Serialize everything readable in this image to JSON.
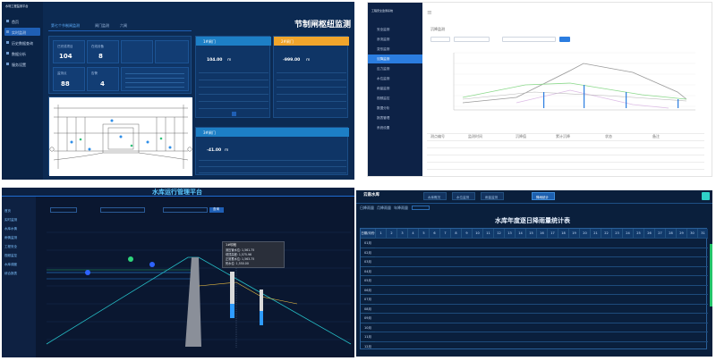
{
  "panel1": {
    "title": "节制闸枢纽监测",
    "nav": [
      "首页",
      "实时监测",
      "历史数据查询",
      "数据分析",
      "服务设置"
    ],
    "tabs": [
      "第七个节制闸监测",
      "闸门监测",
      "六闸"
    ],
    "tiles": [
      {
        "value": "104",
        "label": "已完成项目"
      },
      {
        "value": "8",
        "label": "在线设备"
      },
      {
        "value": "88",
        "label": "监测点"
      },
      {
        "value": "4",
        "label": "告警"
      }
    ],
    "gate1": {
      "header": "1#闸门",
      "value": "104.00",
      "unit": "m"
    },
    "gate2": {
      "header": "2#闸门",
      "value": "-999.00",
      "unit": "m"
    },
    "gate3": {
      "header": "3#闸门",
      "value": "-41.00",
      "unit": "m"
    },
    "colors": {
      "accent": "#1f5fb5",
      "gate1": "#1d7fc6",
      "gate2": "#f0a52c",
      "gate3": "#1d7fc6"
    }
  },
  "panel2": {
    "title": "沉降监测",
    "nav": [
      "安全监测",
      "渗流监测",
      "变形监测",
      "沉降监测",
      "应力监测",
      "水位监测",
      "雨量监测",
      "视频监控",
      "数据分析",
      "报表管理",
      "系统设置"
    ],
    "active_index": 3,
    "legend": [
      "设计线",
      "监测线"
    ],
    "table_headers": [
      "测点编号",
      "监测时间",
      "沉降值",
      "累计沉降",
      "状态",
      "备注"
    ]
  },
  "panel3": {
    "title": "水库运行管理平台",
    "nav": [
      "首页",
      "实时监测",
      "水库水情",
      "雨情监测",
      "工程安全",
      "视频监控",
      "水库调度",
      "综合报表"
    ],
    "query_button": "查询",
    "tooltip": {
      "title": "1#坝段",
      "items": [
        "测压管水位: 1,561.75",
        "坝顶高程: 1,575.96",
        "正常蓄水位: 1,563.75",
        "死水位: 1,550.00"
      ]
    },
    "colors": {
      "water": "#2e9bff",
      "dam": "#8a8f99",
      "profile": "#26c0c8",
      "phreatic": "#f4c542"
    }
  },
  "panel4": {
    "nav_title": "云南水库",
    "tabs": [
      "水库概况",
      "水位监测",
      "雨量监测",
      "降雨统计"
    ],
    "active_tab": 3,
    "subtabs": [
      "日降雨量",
      "月降雨量",
      "年降雨量"
    ],
    "table_title": "水库年度逐日降雨量统计表",
    "col_header": "日期/月份",
    "days": [
      "1",
      "2",
      "3",
      "4",
      "5",
      "6",
      "7",
      "8",
      "9",
      "10",
      "11",
      "12",
      "13",
      "14",
      "15",
      "16",
      "17",
      "18",
      "19",
      "20",
      "21",
      "22",
      "23",
      "24",
      "25",
      "26",
      "27",
      "28",
      "29",
      "30",
      "31"
    ],
    "months": [
      "01月",
      "02月",
      "03月",
      "04月",
      "05月",
      "06月",
      "07月",
      "08月",
      "09月",
      "10月",
      "11月",
      "12月"
    ]
  }
}
